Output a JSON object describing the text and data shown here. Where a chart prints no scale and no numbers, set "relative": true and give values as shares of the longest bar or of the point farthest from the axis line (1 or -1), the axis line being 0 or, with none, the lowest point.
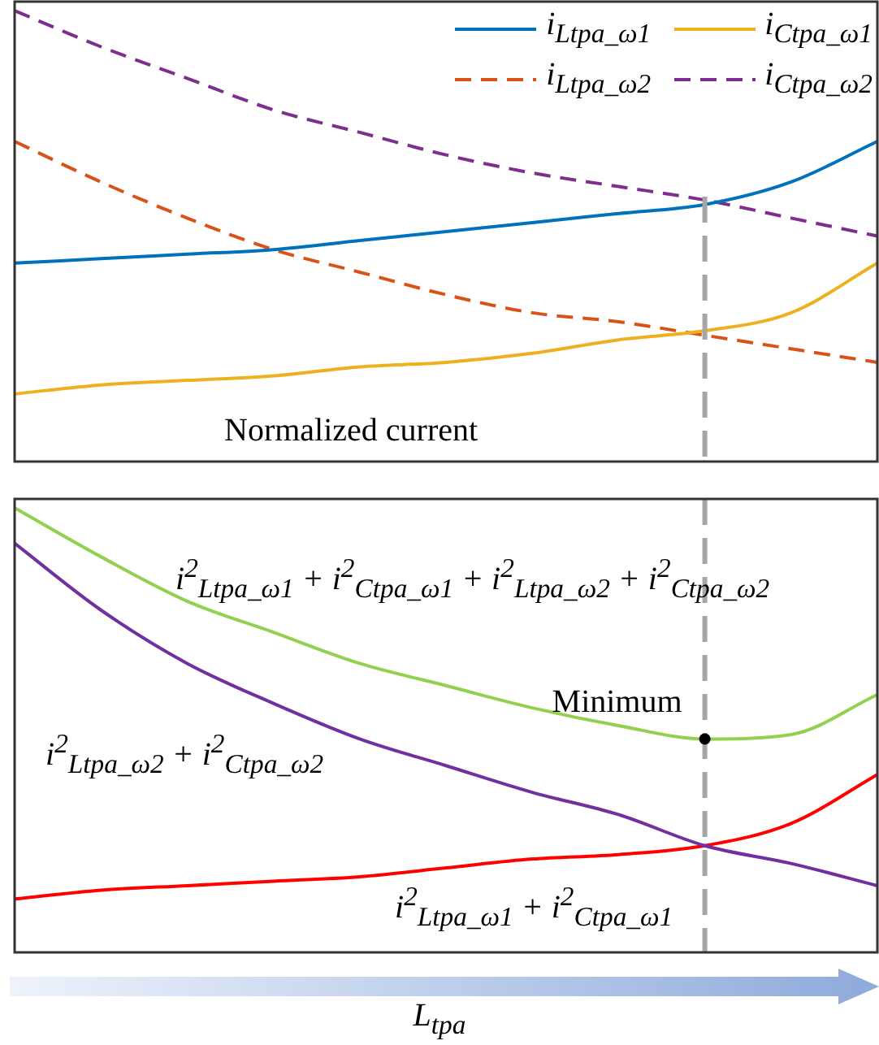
{
  "chart_data": [
    {
      "type": "line",
      "relative": true,
      "categories": [
        null,
        null,
        null,
        null,
        null,
        null,
        null,
        null,
        null,
        null,
        null
      ],
      "legend": "top right",
      "tick_labels": false,
      "series": [
        {
          "name": "i$_{Ltpa_ω1}$",
          "color": "#0072bd",
          "line_style": "solid",
          "values": [
            0.44,
            0.45,
            0.46,
            0.47,
            0.49,
            0.51,
            0.53,
            0.55,
            0.57,
            0.62,
            0.71
          ]
        },
        {
          "name": "i$_{Ctpa_ω1}$",
          "color": "#edb120",
          "line_style": "solid",
          "values": [
            0.15,
            0.17,
            0.18,
            0.19,
            0.21,
            0.22,
            0.24,
            0.27,
            0.29,
            0.33,
            0.44
          ]
        },
        {
          "name": "i$_{Ltpa_ω2}$",
          "color": "#d95319",
          "line_style": "dashed",
          "values": [
            0.71,
            0.62,
            0.54,
            0.47,
            0.42,
            0.37,
            0.33,
            0.31,
            0.28,
            0.25,
            0.22
          ]
        },
        {
          "name": "i$_{Ctpa_ω2}$",
          "color": "#7e2f8e",
          "line_style": "dashed",
          "values": [
            1,
            0.92,
            0.85,
            0.78,
            0.73,
            0.68,
            0.64,
            0.61,
            0.58,
            0.54,
            0.5
          ]
        }
      ],
      "annotations": [
        "Normalized current"
      ]
    },
    {
      "type": "line",
      "relative": true,
      "categories": [
        null,
        null,
        null,
        null,
        null,
        null,
        null,
        null,
        null,
        null,
        null
      ],
      "tick_labels": false,
      "xlabel": "L$_{tpa}$",
      "series": [
        {
          "name": "i$^{2}$$_{Ltpa_ω1}$ + i$^{2}$$_{Ctpa_ω1}$ + i$^{2}$$_{Ltpa_ω2}$ + i$^{2}$$_{Ctpa_ω2}$",
          "color": "#92d050",
          "line_style": "solid",
          "values": [
            1,
            0.89,
            0.79,
            0.72,
            0.65,
            0.6,
            0.55,
            0.51,
            0.48,
            0.49,
            0.58
          ]
        },
        {
          "name": "i$^{2}$$_{Ltpa_ω2}$ + i$^{2}$$_{Ctpa_ω2}$",
          "color": "#7030a0",
          "line_style": "solid",
          "values": [
            0.92,
            0.77,
            0.65,
            0.56,
            0.48,
            0.42,
            0.36,
            0.31,
            0.24,
            0.2,
            0.15
          ]
        },
        {
          "name": "i$^{2}$$_{Ltpa_ω1}$ + i$^{2}$$_{Ctpa_ω1}$",
          "color": "#ff0000",
          "line_style": "solid",
          "values": [
            0.12,
            0.14,
            0.15,
            0.16,
            0.17,
            0.19,
            0.21,
            0.22,
            0.24,
            0.29,
            0.4
          ]
        }
      ],
      "annotations": [
        "Minimum"
      ]
    }
  ]
}
